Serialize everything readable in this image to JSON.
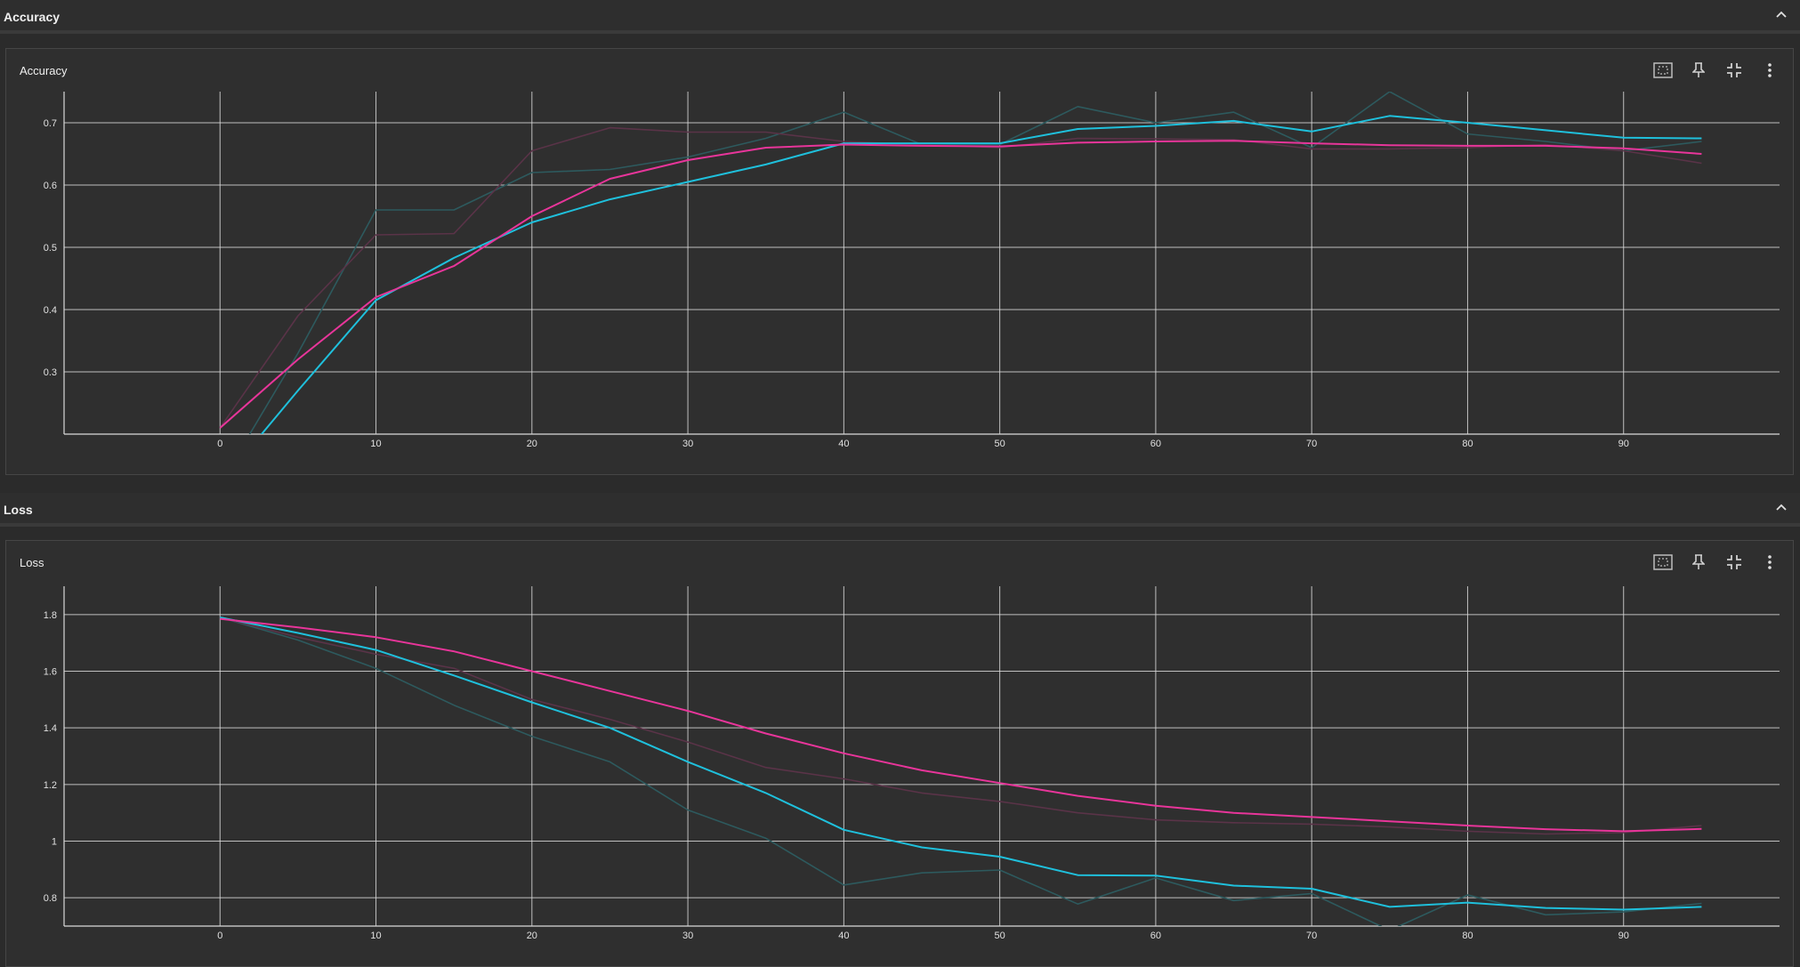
{
  "sections": [
    {
      "title": "Accuracy",
      "card_title": "Accuracy"
    },
    {
      "title": "Loss",
      "card_title": "Loss"
    }
  ],
  "colors": {
    "background": "#2b2b2b",
    "grid": "#d9d9d9",
    "cyan": "#1fc0dc",
    "magenta": "#e8359a",
    "cyan_raw": "#2d5a5e",
    "magenta_raw": "#5a3348"
  },
  "icons": [
    "fit-domain-icon",
    "pin-icon",
    "collapse-card-icon",
    "more-vert-icon",
    "chevron-up-icon"
  ],
  "chart_data": [
    {
      "type": "line",
      "title": "Accuracy",
      "xlabel": "",
      "ylabel": "",
      "xlim": [
        -10,
        100
      ],
      "ylim": [
        0.2,
        0.75
      ],
      "xticks": [
        0,
        10,
        20,
        30,
        40,
        50,
        60,
        70,
        80,
        90
      ],
      "yticks": [
        0.3,
        0.4,
        0.5,
        0.6,
        0.7
      ],
      "grid": true,
      "series": [
        {
          "color": "#2d5a5e",
          "raw": true,
          "x": [
            0,
            5,
            10,
            15,
            20,
            25,
            30,
            35,
            40,
            45,
            50,
            55,
            60,
            65,
            70,
            75,
            80,
            85,
            90,
            95
          ],
          "y": [
            0.12,
            0.33,
            0.56,
            0.56,
            0.62,
            0.625,
            0.645,
            0.675,
            0.717,
            0.665,
            0.665,
            0.726,
            0.7,
            0.717,
            0.66,
            0.75,
            0.682,
            0.67,
            0.655,
            0.67
          ]
        },
        {
          "color": "#5a3348",
          "raw": true,
          "x": [
            0,
            5,
            10,
            15,
            20,
            25,
            30,
            35,
            40,
            45,
            50,
            55,
            60,
            65,
            70,
            75,
            80,
            85,
            90,
            95
          ],
          "y": [
            0.21,
            0.39,
            0.52,
            0.522,
            0.655,
            0.692,
            0.685,
            0.685,
            0.67,
            0.665,
            0.66,
            0.675,
            0.674,
            0.673,
            0.658,
            0.658,
            0.66,
            0.665,
            0.655,
            0.635
          ]
        },
        {
          "color": "#1fc0dc",
          "x": [
            0,
            5,
            10,
            15,
            20,
            25,
            30,
            35,
            40,
            45,
            50,
            55,
            60,
            65,
            70,
            75,
            80,
            85,
            90,
            95
          ],
          "y": [
            0.12,
            0.27,
            0.415,
            0.483,
            0.54,
            0.577,
            0.605,
            0.633,
            0.667,
            0.667,
            0.667,
            0.69,
            0.695,
            0.703,
            0.686,
            0.711,
            0.7,
            0.688,
            0.676,
            0.675
          ]
        },
        {
          "color": "#e8359a",
          "x": [
            0,
            5,
            10,
            15,
            20,
            25,
            30,
            35,
            40,
            45,
            50,
            55,
            60,
            65,
            70,
            75,
            80,
            85,
            90,
            95
          ],
          "y": [
            0.21,
            0.32,
            0.42,
            0.47,
            0.55,
            0.61,
            0.64,
            0.66,
            0.665,
            0.663,
            0.662,
            0.668,
            0.67,
            0.671,
            0.667,
            0.664,
            0.663,
            0.663,
            0.659,
            0.65
          ]
        }
      ]
    },
    {
      "type": "line",
      "title": "Loss",
      "xlabel": "",
      "ylabel": "",
      "xlim": [
        -10,
        100
      ],
      "ylim": [
        0.7,
        1.9
      ],
      "xticks": [
        0,
        10,
        20,
        30,
        40,
        50,
        60,
        70,
        80,
        90
      ],
      "yticks": [
        0.8,
        1,
        1.2,
        1.4,
        1.6,
        1.8
      ],
      "grid": true,
      "series": [
        {
          "color": "#2d5a5e",
          "raw": true,
          "x": [
            0,
            5,
            10,
            15,
            20,
            25,
            30,
            35,
            40,
            45,
            50,
            55,
            60,
            65,
            70,
            75,
            80,
            85,
            90,
            95
          ],
          "y": [
            1.79,
            1.71,
            1.61,
            1.48,
            1.37,
            1.28,
            1.11,
            1.01,
            0.845,
            0.888,
            0.898,
            0.778,
            0.87,
            0.79,
            0.815,
            0.685,
            0.81,
            0.74,
            0.75,
            0.78
          ]
        },
        {
          "color": "#5a3348",
          "raw": true,
          "x": [
            0,
            5,
            10,
            15,
            20,
            25,
            30,
            35,
            40,
            45,
            50,
            55,
            60,
            65,
            70,
            75,
            80,
            85,
            90,
            95
          ],
          "y": [
            1.79,
            1.72,
            1.66,
            1.61,
            1.5,
            1.43,
            1.35,
            1.26,
            1.22,
            1.17,
            1.14,
            1.1,
            1.075,
            1.065,
            1.06,
            1.05,
            1.035,
            1.025,
            1.03,
            1.055
          ]
        },
        {
          "color": "#1fc0dc",
          "x": [
            0,
            5,
            10,
            15,
            20,
            25,
            30,
            35,
            40,
            45,
            50,
            55,
            60,
            65,
            70,
            75,
            80,
            85,
            90,
            95
          ],
          "y": [
            1.79,
            1.735,
            1.675,
            1.585,
            1.49,
            1.4,
            1.28,
            1.17,
            1.04,
            0.978,
            0.945,
            0.88,
            0.878,
            0.843,
            0.832,
            0.768,
            0.783,
            0.764,
            0.758,
            0.768
          ]
        },
        {
          "color": "#e8359a",
          "x": [
            0,
            5,
            10,
            15,
            20,
            25,
            30,
            35,
            40,
            45,
            50,
            55,
            60,
            65,
            70,
            75,
            80,
            85,
            90,
            95
          ],
          "y": [
            1.785,
            1.755,
            1.72,
            1.67,
            1.6,
            1.53,
            1.46,
            1.38,
            1.31,
            1.25,
            1.205,
            1.16,
            1.125,
            1.1,
            1.085,
            1.07,
            1.055,
            1.042,
            1.035,
            1.043
          ]
        }
      ]
    }
  ]
}
